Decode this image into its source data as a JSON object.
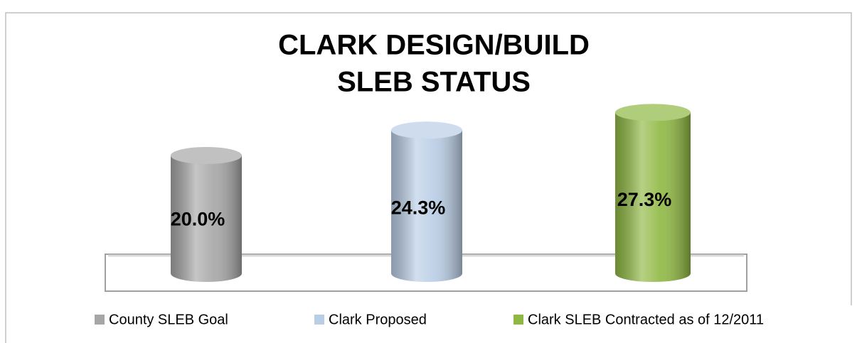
{
  "chart_data": {
    "type": "cylinder-bar",
    "title": [
      "CLARK DESIGN/BUILD",
      "SLEB STATUS"
    ],
    "series": [
      {
        "name": "County SLEB Goal",
        "color": "#a6a6a6",
        "values": [
          20.0
        ],
        "value_labels": [
          "20.0%"
        ]
      },
      {
        "name": "Clark Proposed",
        "color": "#b9cde5",
        "values": [
          24.3
        ],
        "value_labels": [
          "24.3%"
        ]
      },
      {
        "name": "Clark SLEB Contracted as of 12/2011",
        "color": "#8fb842",
        "values": [
          27.3
        ],
        "value_labels": [
          "27.3%"
        ]
      }
    ],
    "legend": "bottom"
  }
}
